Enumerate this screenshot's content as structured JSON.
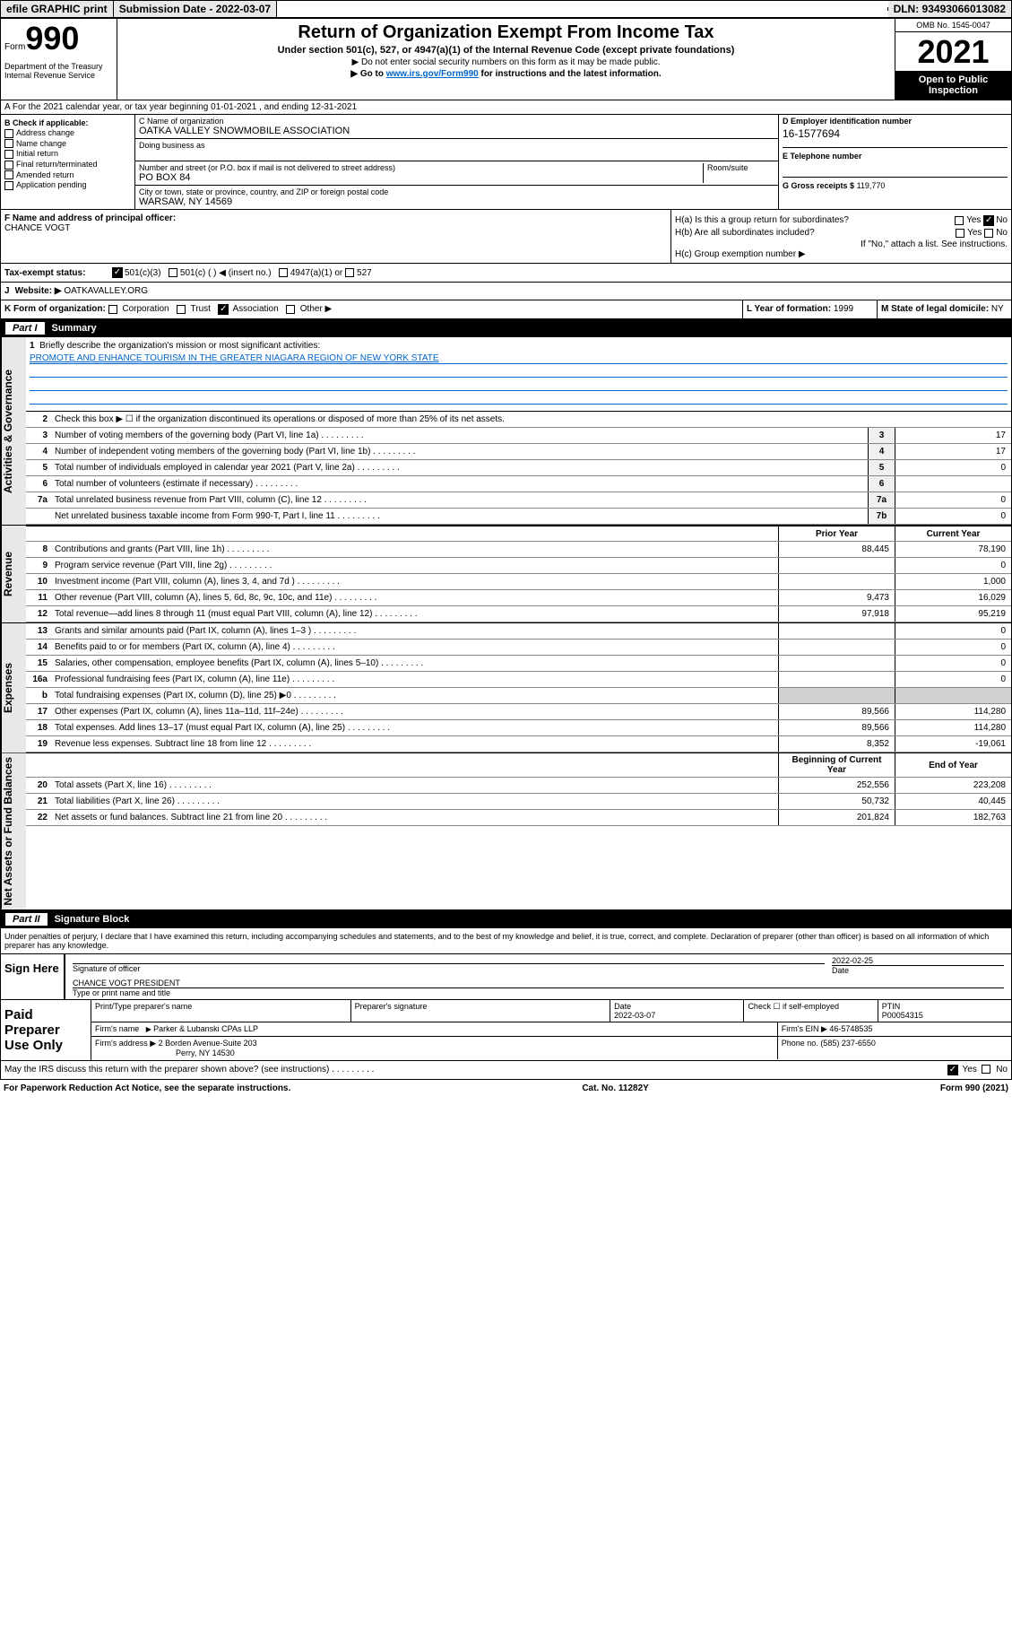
{
  "header_bar": {
    "efile": "efile GRAPHIC print",
    "sub_lbl": "Submission Date - 2022-03-07",
    "dln": "DLN: 93493066013082"
  },
  "form_top": {
    "form_word": "Form",
    "form_num": "990",
    "dept": "Department of the Treasury\nInternal Revenue Service",
    "title": "Return of Organization Exempt From Income Tax",
    "sub": "Under section 501(c), 527, or 4947(a)(1) of the Internal Revenue Code (except private foundations)",
    "note1": "▶ Do not enter social security numbers on this form as it may be made public.",
    "note2_pre": "▶ Go to ",
    "note2_link": "www.irs.gov/Form990",
    "note2_post": " for instructions and the latest information.",
    "omb": "OMB No. 1545-0047",
    "year": "2021",
    "inspect": "Open to Public Inspection"
  },
  "section_a": "A For the 2021 calendar year, or tax year beginning 01-01-2021   , and ending 12-31-2021",
  "box_b": {
    "title": "B Check if applicable:",
    "items": [
      "Address change",
      "Name change",
      "Initial return",
      "Final return/terminated",
      "Amended return",
      "Application pending"
    ]
  },
  "box_c": {
    "lbl": "C Name of organization",
    "name": "OATKA VALLEY SNOWMOBILE ASSOCIATION",
    "dba_lbl": "Doing business as",
    "dba": "",
    "addr_lbl": "Number and street (or P.O. box if mail is not delivered to street address)",
    "room_lbl": "Room/suite",
    "addr": "PO BOX 84",
    "city_lbl": "City or town, state or province, country, and ZIP or foreign postal code",
    "city": "WARSAW, NY  14569"
  },
  "box_d": {
    "lbl": "D Employer identification number",
    "val": "16-1577694"
  },
  "box_e": {
    "lbl": "E Telephone number",
    "val": ""
  },
  "box_g": {
    "lbl": "G Gross receipts $",
    "val": "119,770"
  },
  "box_f": {
    "lbl": "F  Name and address of principal officer:",
    "val": "CHANCE VOGT"
  },
  "box_h": {
    "a": "H(a)  Is this a group return for subordinates?",
    "b": "H(b)  Are all subordinates included?",
    "b_note": "If \"No,\" attach a list. See instructions.",
    "c": "H(c)  Group exemption number ▶",
    "yes": "Yes",
    "no": "No"
  },
  "row_i": {
    "lbl": "Tax-exempt status:",
    "opt1": "501(c)(3)",
    "opt2": "501(c) (  ) ◀ (insert no.)",
    "opt3": "4947(a)(1) or",
    "opt4": "527"
  },
  "row_j": {
    "lbl": "J",
    "t": "Website: ▶",
    "val": "OATKAVALLEY.ORG"
  },
  "row_k": {
    "lbl": "K Form of organization:",
    "opts": [
      "Corporation",
      "Trust",
      "Association",
      "Other ▶"
    ],
    "checked": 2
  },
  "row_l": {
    "lbl": "L Year of formation:",
    "val": "1999"
  },
  "row_m": {
    "lbl": "M State of legal domicile:",
    "val": "NY"
  },
  "part1": {
    "lbl": "Part I",
    "title": "Summary"
  },
  "summary": {
    "q1": "Briefly describe the organization's mission or most significant activities:",
    "mission": "PROMOTE AND ENHANCE TOURISM IN THE GREATER NIAGARA REGION OF NEW YORK STATE",
    "q2": "Check this box ▶ ☐  if the organization discontinued its operations or disposed of more than 25% of its net assets.",
    "rows_gov": [
      {
        "n": "3",
        "t": "Number of voting members of the governing body (Part VI, line 1a)",
        "box": "3",
        "v": "17"
      },
      {
        "n": "4",
        "t": "Number of independent voting members of the governing body (Part VI, line 1b)",
        "box": "4",
        "v": "17"
      },
      {
        "n": "5",
        "t": "Total number of individuals employed in calendar year 2021 (Part V, line 2a)",
        "box": "5",
        "v": "0"
      },
      {
        "n": "6",
        "t": "Total number of volunteers (estimate if necessary)",
        "box": "6",
        "v": ""
      },
      {
        "n": "7a",
        "t": "Total unrelated business revenue from Part VIII, column (C), line 12",
        "box": "7a",
        "v": "0"
      },
      {
        "n": "",
        "t": "Net unrelated business taxable income from Form 990-T, Part I, line 11",
        "box": "7b",
        "v": "0"
      }
    ],
    "col_prior": "Prior Year",
    "col_curr": "Current Year",
    "rows_rev": [
      {
        "n": "8",
        "t": "Contributions and grants (Part VIII, line 1h)",
        "p": "88,445",
        "c": "78,190"
      },
      {
        "n": "9",
        "t": "Program service revenue (Part VIII, line 2g)",
        "p": "",
        "c": "0"
      },
      {
        "n": "10",
        "t": "Investment income (Part VIII, column (A), lines 3, 4, and 7d )",
        "p": "",
        "c": "1,000"
      },
      {
        "n": "11",
        "t": "Other revenue (Part VIII, column (A), lines 5, 6d, 8c, 9c, 10c, and 11e)",
        "p": "9,473",
        "c": "16,029"
      },
      {
        "n": "12",
        "t": "Total revenue—add lines 8 through 11 (must equal Part VIII, column (A), line 12)",
        "p": "97,918",
        "c": "95,219"
      }
    ],
    "rows_exp": [
      {
        "n": "13",
        "t": "Grants and similar amounts paid (Part IX, column (A), lines 1–3 )",
        "p": "",
        "c": "0"
      },
      {
        "n": "14",
        "t": "Benefits paid to or for members (Part IX, column (A), line 4)",
        "p": "",
        "c": "0"
      },
      {
        "n": "15",
        "t": "Salaries, other compensation, employee benefits (Part IX, column (A), lines 5–10)",
        "p": "",
        "c": "0"
      },
      {
        "n": "16a",
        "t": "Professional fundraising fees (Part IX, column (A), line 11e)",
        "p": "",
        "c": "0"
      },
      {
        "n": "b",
        "t": "Total fundraising expenses (Part IX, column (D), line 25) ▶0",
        "p": "gray",
        "c": "gray"
      },
      {
        "n": "17",
        "t": "Other expenses (Part IX, column (A), lines 11a–11d, 11f–24e)",
        "p": "89,566",
        "c": "114,280"
      },
      {
        "n": "18",
        "t": "Total expenses. Add lines 13–17 (must equal Part IX, column (A), line 25)",
        "p": "89,566",
        "c": "114,280"
      },
      {
        "n": "19",
        "t": "Revenue less expenses. Subtract line 18 from line 12",
        "p": "8,352",
        "c": "-19,061"
      }
    ],
    "col_beg": "Beginning of Current Year",
    "col_end": "End of Year",
    "rows_na": [
      {
        "n": "20",
        "t": "Total assets (Part X, line 16)",
        "p": "252,556",
        "c": "223,208"
      },
      {
        "n": "21",
        "t": "Total liabilities (Part X, line 26)",
        "p": "50,732",
        "c": "40,445"
      },
      {
        "n": "22",
        "t": "Net assets or fund balances. Subtract line 21 from line 20",
        "p": "201,824",
        "c": "182,763"
      }
    ]
  },
  "side_labels": {
    "gov": "Activities & Governance",
    "rev": "Revenue",
    "exp": "Expenses",
    "na": "Net Assets or Fund Balances"
  },
  "part2": {
    "lbl": "Part II",
    "title": "Signature Block"
  },
  "sig": {
    "decl": "Under penalties of perjury, I declare that I have examined this return, including accompanying schedules and statements, and to the best of my knowledge and belief, it is true, correct, and complete. Declaration of preparer (other than officer) is based on all information of which preparer has any knowledge.",
    "sign_here": "Sign Here",
    "sig_officer": "Signature of officer",
    "date_lbl": "Date",
    "date": "2022-02-25",
    "name": "CHANCE VOGT PRESIDENT",
    "name_lbl": "Type or print name and title",
    "paid": "Paid Preparer Use Only",
    "h1": "Print/Type preparer's name",
    "h2": "Preparer's signature",
    "h3": "Date",
    "h3v": "2022-03-07",
    "h4": "Check ☐ if self-employed",
    "h5": "PTIN",
    "h5v": "P00054315",
    "firm_lbl": "Firm's name",
    "firm": "Parker & Lubanski CPAs LLP",
    "ein_lbl": "Firm's EIN ▶",
    "ein": "46-5748535",
    "addr_lbl": "Firm's address ▶",
    "addr": "2 Borden Avenue-Suite 203",
    "addr2": "Perry, NY  14530",
    "phone_lbl": "Phone no.",
    "phone": "(585) 237-6550",
    "discuss": "May the IRS discuss this return with the preparer shown above? (see instructions)"
  },
  "footer": {
    "l": "For Paperwork Reduction Act Notice, see the separate instructions.",
    "m": "Cat. No. 11282Y",
    "r": "Form 990 (2021)"
  }
}
